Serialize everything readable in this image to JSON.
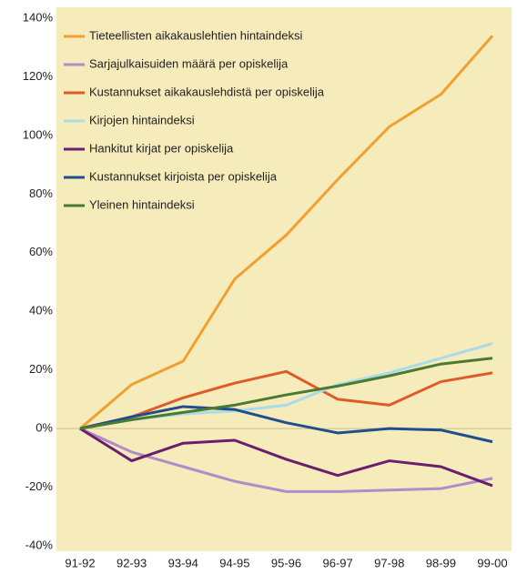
{
  "chart_data": {
    "type": "line",
    "categories": [
      "91-92",
      "92-93",
      "93-94",
      "94-95",
      "95-96",
      "96-97",
      "97-98",
      "98-99",
      "99-00"
    ],
    "series": [
      {
        "name": "Tieteellisten aikakauslehtien hintaindeksi",
        "color": "#f0a030",
        "values": [
          0,
          15,
          23,
          51,
          66,
          85,
          103,
          114,
          134
        ]
      },
      {
        "name": "Sarjajulkaisuiden määrä per opiskelija",
        "color": "#b08cc8",
        "values": [
          0,
          -8,
          -13,
          -18,
          -21.5,
          -21.5,
          -21,
          -20.5,
          -17
        ]
      },
      {
        "name": "Kustannukset aikakauslehdistä per opiskelija",
        "color": "#e05a28",
        "values": [
          0,
          4,
          10.5,
          15.5,
          19.5,
          10,
          8,
          16,
          19
        ]
      },
      {
        "name": "Kirjojen hintaindeksi",
        "color": "#a8dce8",
        "values": [
          0,
          3,
          5,
          6,
          8,
          15,
          19,
          24,
          29
        ]
      },
      {
        "name": "Hankitut kirjat per opiskelija",
        "color": "#6a1f6e",
        "values": [
          0,
          -11,
          -5,
          -4,
          -10.5,
          -16,
          -11,
          -13,
          -19.5
        ]
      },
      {
        "name": "Kustannukset kirjoista per opiskelija",
        "color": "#1f4e8c",
        "values": [
          0,
          4,
          7.5,
          6.5,
          2,
          -1.5,
          0,
          -0.5,
          -4.5
        ]
      },
      {
        "name": "Yleinen hintaindeksi",
        "color": "#4a7a32",
        "values": [
          0,
          3,
          5.5,
          8,
          11.5,
          14.5,
          18,
          22,
          24
        ]
      }
    ],
    "ylim": [
      -40,
      140
    ],
    "yticks": [
      {
        "value": -40,
        "label": "-40%"
      },
      {
        "value": -20,
        "label": "-20%"
      },
      {
        "value": 0,
        "label": "0%"
      },
      {
        "value": 20,
        "label": "20%"
      },
      {
        "value": 40,
        "label": "40%"
      },
      {
        "value": 60,
        "label": "60%"
      },
      {
        "value": 80,
        "label": "80%"
      },
      {
        "value": 100,
        "label": "100%"
      },
      {
        "value": 120,
        "label": "120%"
      },
      {
        "value": 140,
        "label": "140%"
      }
    ],
    "legend": "upper left"
  }
}
